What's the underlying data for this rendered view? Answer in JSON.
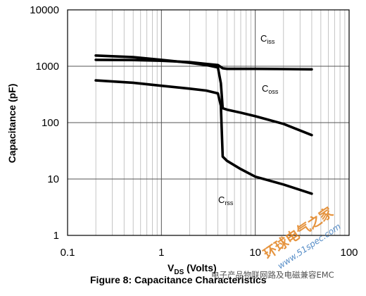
{
  "chart_data": {
    "type": "line",
    "xscale": "log",
    "yscale": "log",
    "xlim": [
      0.1,
      100
    ],
    "ylim": [
      1,
      10000
    ],
    "x_ticks": [
      "0.1",
      "1",
      "10",
      "100"
    ],
    "y_ticks": [
      "1",
      "10",
      "100",
      "1000",
      "10000"
    ],
    "xlabel": {
      "main": "V",
      "sub": "DS",
      "rest": " (Volts)"
    },
    "ylabel": "Capacitance (pF)",
    "caption": "Figure 8: Capacitance Characteristics",
    "grid": true,
    "series": [
      {
        "name": "C_iss",
        "label_main": "C",
        "label_sub": "iss",
        "x": [
          0.2,
          0.5,
          1.0,
          2.0,
          3.0,
          4.0,
          4.5,
          5.0,
          7.0,
          10.0,
          20.0,
          40.0
        ],
        "y": [
          1300,
          1290,
          1250,
          1180,
          1100,
          1050,
          920,
          900,
          900,
          900,
          890,
          880
        ]
      },
      {
        "name": "C_oss",
        "label_main": "C",
        "label_sub": "oss",
        "x": [
          0.2,
          0.5,
          1.0,
          2.0,
          3.0,
          4.0,
          4.3,
          4.5,
          5.0,
          7.0,
          10.0,
          20.0,
          40.0
        ],
        "y": [
          1550,
          1450,
          1300,
          1150,
          1050,
          950,
          500,
          180,
          170,
          150,
          130,
          95,
          60
        ]
      },
      {
        "name": "C_rss",
        "label_main": "C",
        "label_sub": "rss",
        "x": [
          0.2,
          0.5,
          1.0,
          2.0,
          3.0,
          4.0,
          4.3,
          4.5,
          5.0,
          7.0,
          10.0,
          20.0,
          40.0
        ],
        "y": [
          560,
          510,
          450,
          400,
          370,
          330,
          200,
          25,
          21,
          15,
          11,
          8,
          5.5
        ]
      }
    ]
  },
  "watermark": {
    "text1": "电子产品物联网路及电磁兼容EMC",
    "text2": "环球电气之家",
    "text3": "www.51spec.com"
  }
}
